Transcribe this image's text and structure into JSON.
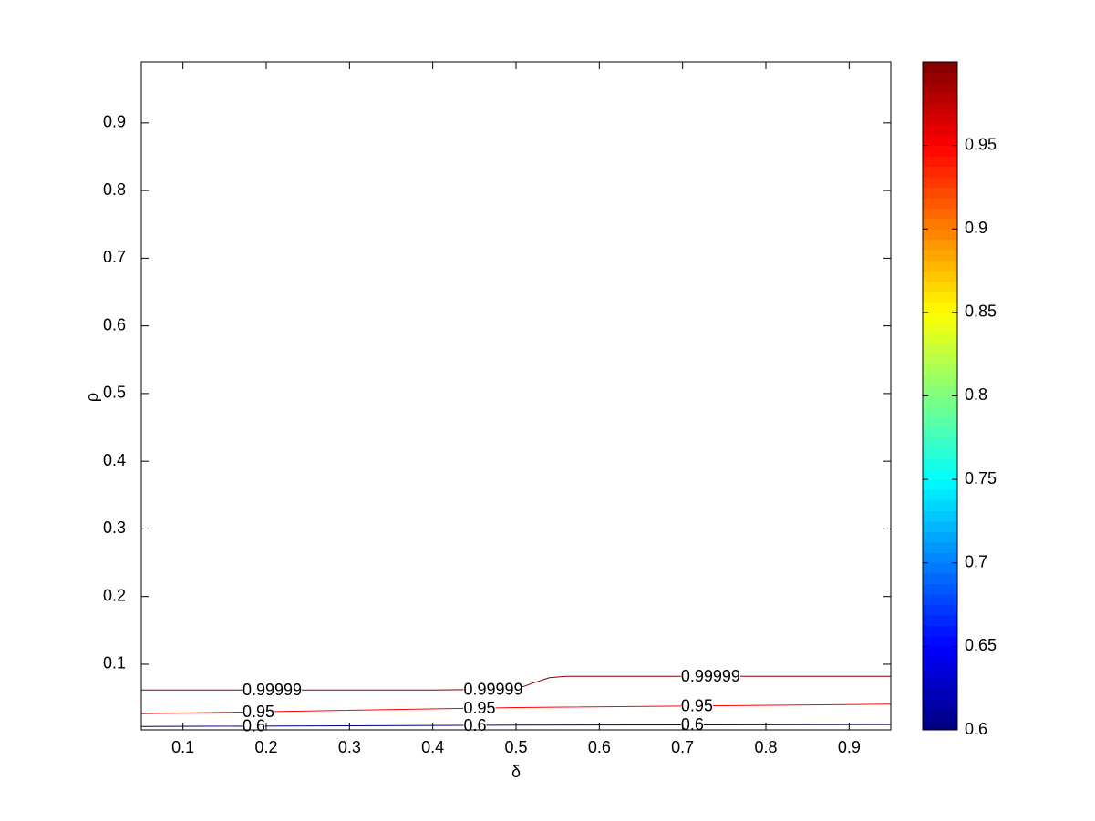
{
  "chart_data": {
    "type": "contour",
    "x_label": "δ",
    "y_label": "ρ",
    "xlim": [
      0.05,
      0.95
    ],
    "ylim": [
      0.003,
      0.99
    ],
    "xticks": [
      0.1,
      0.2,
      0.3,
      0.4,
      0.5,
      0.6,
      0.7,
      0.8,
      0.9
    ],
    "yticks": [
      0.1,
      0.2,
      0.3,
      0.4,
      0.5,
      0.6,
      0.7,
      0.8,
      0.9
    ],
    "colormap": "jet",
    "clim": [
      0.6,
      0.99999
    ],
    "cticks": [
      0.6,
      0.65,
      0.7,
      0.75,
      0.8,
      0.85,
      0.9,
      0.95
    ],
    "contours": [
      {
        "level": 0.99999,
        "x": [
          0.05,
          0.2,
          0.4,
          0.5,
          0.52,
          0.54,
          0.56,
          0.7,
          0.95
        ],
        "y": [
          0.062,
          0.062,
          0.062,
          0.063,
          0.072,
          0.08,
          0.082,
          0.082,
          0.082
        ]
      },
      {
        "level": 0.95,
        "x": [
          0.05,
          0.5,
          0.95
        ],
        "y": [
          0.027,
          0.036,
          0.041
        ]
      },
      {
        "level": 0.6,
        "x": [
          0.05,
          0.5,
          0.95
        ],
        "y": [
          0.008,
          0.01,
          0.011
        ]
      }
    ]
  }
}
